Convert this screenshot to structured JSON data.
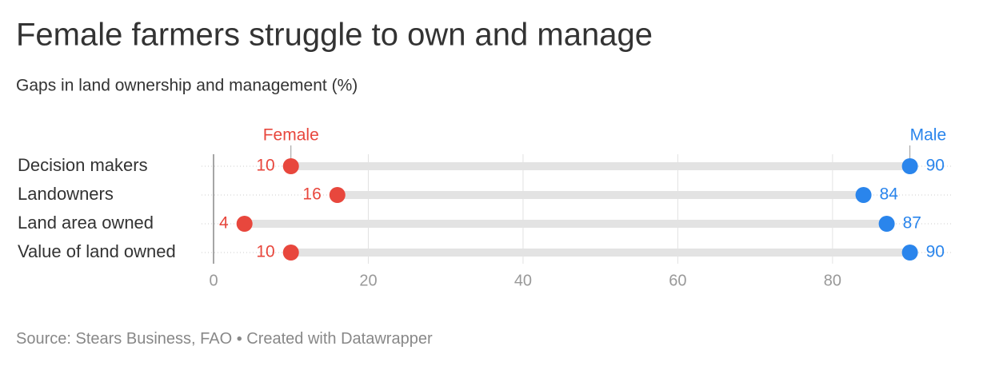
{
  "chart_data": {
    "type": "dot-range",
    "title": "Female farmers struggle to own and manage",
    "subtitle": "Gaps in land ownership and management (%)",
    "categories": [
      "Decision makers",
      "Landowners",
      "Land area owned",
      "Value of land owned"
    ],
    "series": [
      {
        "name": "Female",
        "color": "#e8473d",
        "values": [
          10,
          16,
          4,
          10
        ]
      },
      {
        "name": "Male",
        "color": "#2a85ec",
        "values": [
          90,
          84,
          87,
          90
        ]
      }
    ],
    "xlim": [
      0,
      95
    ],
    "xticks": [
      0,
      20,
      40,
      60,
      80
    ],
    "grid": true,
    "source_label": "Source:",
    "source": "Stears Business, FAO",
    "credit": "Created with Datawrapper"
  }
}
